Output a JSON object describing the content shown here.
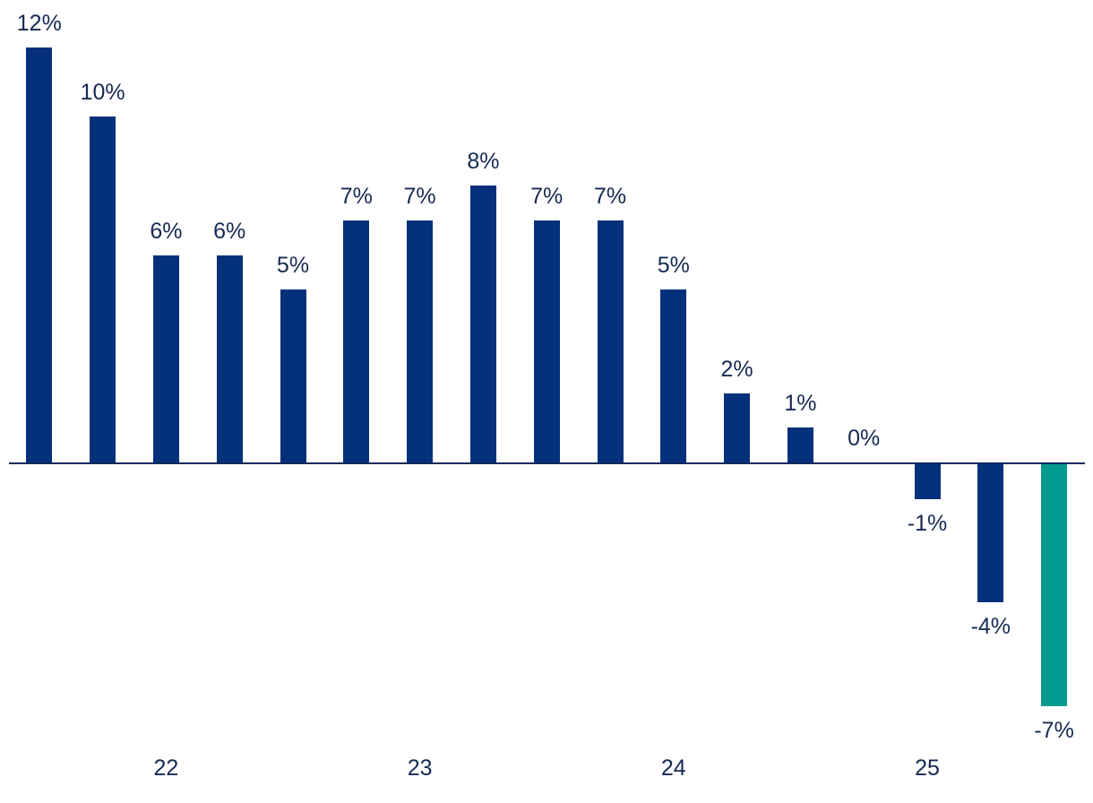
{
  "chart_data": {
    "type": "bar",
    "title": "",
    "unit": "%",
    "values": [
      12,
      10,
      6,
      6,
      5,
      7,
      7,
      8,
      7,
      7,
      5,
      2,
      1,
      0,
      -1,
      -4,
      -7
    ],
    "labels": [
      "12%",
      "10%",
      "6%",
      "6%",
      "5%",
      "7%",
      "7%",
      "8%",
      "7%",
      "7%",
      "5%",
      "2%",
      "1%",
      "0%",
      "-1%",
      "-4%",
      "-7%"
    ],
    "x_ticks": [
      {
        "label": "22",
        "bar_index": 2
      },
      {
        "label": "23",
        "bar_index": 6
      },
      {
        "label": "24",
        "bar_index": 10
      },
      {
        "label": "25",
        "bar_index": 14
      }
    ],
    "highlight_index": 16,
    "colors": {
      "bar": "#05317b",
      "highlight_bar": "#009a8e",
      "axis_line": "#0a2a5c",
      "label_text": "#152a52"
    },
    "ylim": [
      -8,
      13
    ],
    "baseline": 0,
    "grid": false,
    "legend": false
  }
}
